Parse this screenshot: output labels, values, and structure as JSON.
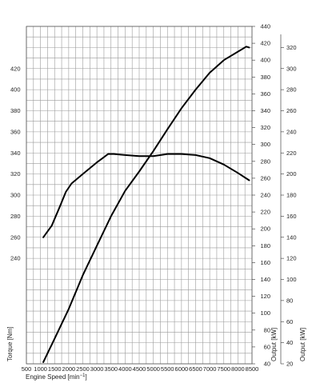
{
  "chart_data": {
    "type": "line",
    "title": "",
    "xlabel": "Engine Speed [min",
    "xlabel_sup": "−1",
    "xlabel_end": "]",
    "xlim": [
      500,
      8500
    ],
    "x_ticks": [
      "500",
      "1000",
      "1500",
      "2000",
      "2500",
      "3000",
      "3500",
      "4000",
      "4500",
      "5000",
      "5500",
      "6000",
      "6500",
      "7000",
      "7500",
      "8000",
      "8500"
    ],
    "axes": {
      "torque": {
        "label": "Torque [Nm]",
        "ylim": [
          140,
          460
        ],
        "ticks": [
          "240",
          "260",
          "280",
          "300",
          "320",
          "340",
          "360",
          "380",
          "400",
          "420"
        ]
      },
      "output1": {
        "label": "Output [kW]",
        "ylim": [
          40,
          440
        ],
        "ticks": [
          "40",
          "60",
          "80",
          "100",
          "120",
          "140",
          "160",
          "180",
          "200",
          "220",
          "240",
          "260",
          "280",
          "300",
          "320",
          "340",
          "360",
          "380",
          "400",
          "420",
          "440"
        ]
      },
      "output2": {
        "label": "Output [kW]",
        "ylim": [
          20,
          340
        ],
        "ticks": [
          "20",
          "40",
          "60",
          "80",
          "100",
          "120",
          "140",
          "160",
          "180",
          "200",
          "220",
          "240",
          "260",
          "280",
          "300",
          "320"
        ]
      }
    },
    "grid": true,
    "series": [
      {
        "axis": "torque",
        "x": [
          1100,
          1400,
          1700,
          1900,
          2100,
          2500,
          3000,
          3400,
          3600,
          4000,
          4500,
          5000,
          5500,
          6000,
          6500,
          7000,
          7500,
          8000,
          8400
        ],
        "y": [
          260,
          271,
          290,
          303,
          311,
          320,
          331,
          339,
          339,
          338,
          337,
          337,
          339,
          339,
          338,
          335,
          329,
          321,
          314
        ]
      },
      {
        "axis": "output1",
        "x": [
          1100,
          1500,
          2000,
          2500,
          3000,
          3500,
          4000,
          4500,
          5000,
          5500,
          6000,
          6500,
          7000,
          7500,
          8000,
          8300,
          8400
        ],
        "y": [
          42,
          70,
          105,
          145,
          180,
          215,
          245,
          268,
          292,
          318,
          343,
          365,
          385,
          400,
          410,
          416,
          415
        ]
      }
    ]
  }
}
